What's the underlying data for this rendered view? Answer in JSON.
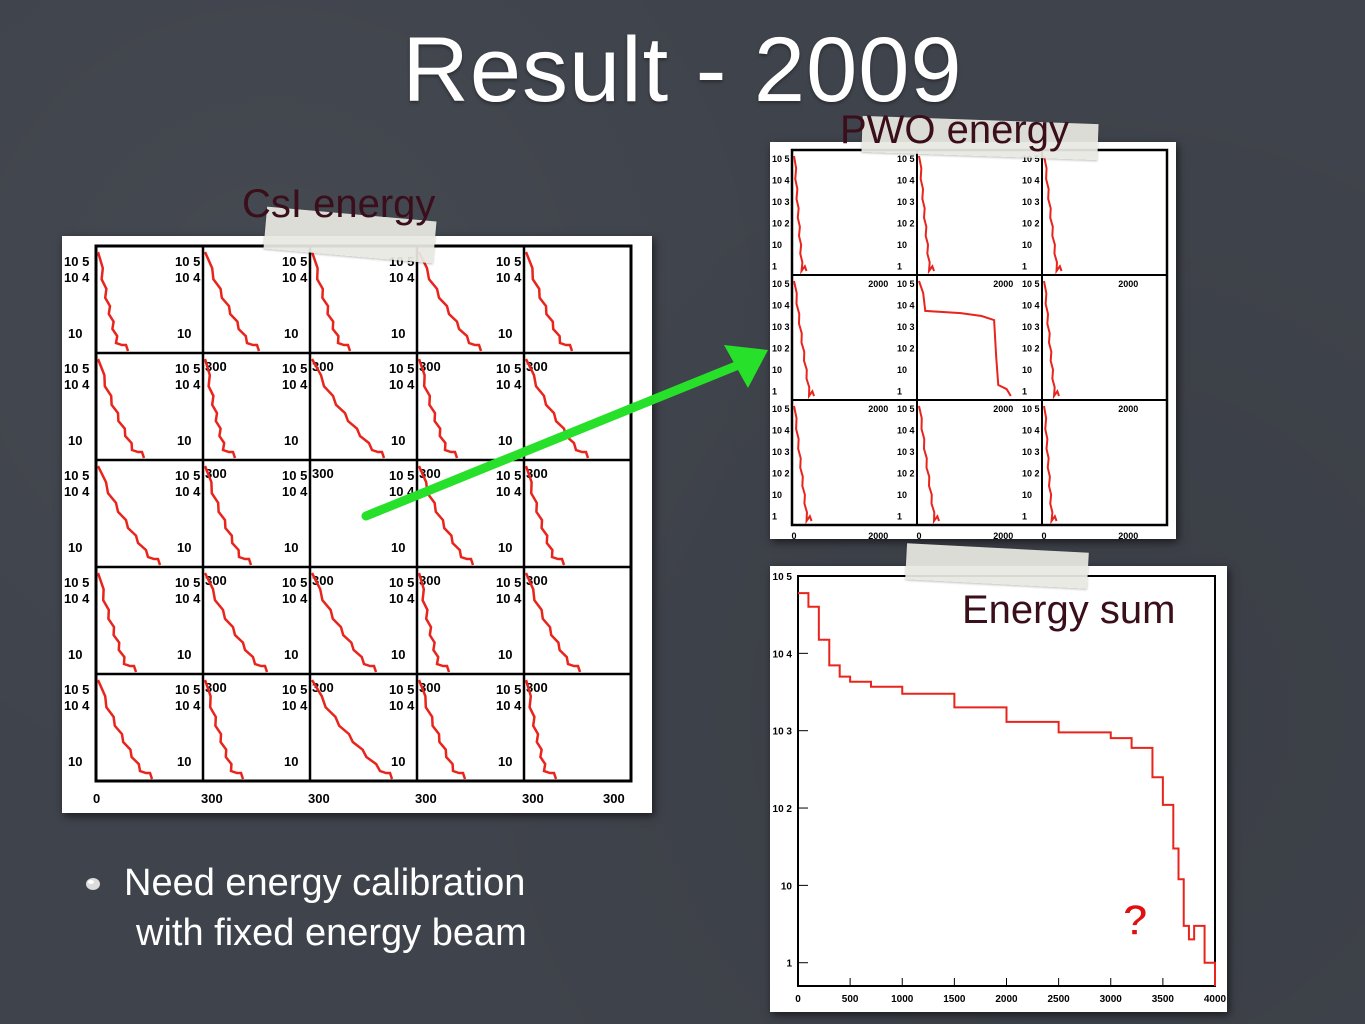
{
  "slide": {
    "title": "Result - 2009",
    "bullet": "Need energy calibration with fixed energy beam",
    "bullet_line1": "Need energy calibration",
    "bullet_line2": "with fixed energy beam",
    "question_mark": "?",
    "colors": {
      "background": "#3f434b",
      "histogram": "#e8241c",
      "arrow": "#27e02a",
      "label": "#3a0e1a"
    }
  },
  "chart_data": [
    {
      "type": "line",
      "title": "CsI energy",
      "grid": "5x5 histograms",
      "scale_y": "log",
      "xlim": [
        0,
        300
      ],
      "ylim": [
        1,
        100000
      ],
      "x_tick_labels": [
        "0",
        "300"
      ],
      "y_tick_labels": [
        "10 5",
        "10 4",
        "10"
      ],
      "series": [
        {
          "shape": "steep falling spectrum",
          "cells": 25
        }
      ]
    },
    {
      "type": "line",
      "title": "PWO energy",
      "grid": "3x3 histograms",
      "scale_y": "log",
      "xlim": [
        0,
        2900
      ],
      "ylim": [
        1,
        100000
      ],
      "x_tick_labels": [
        "0",
        "2000"
      ],
      "y_tick_labels": [
        "10 5",
        "10 4",
        "10 3",
        "10 2",
        "10",
        "1"
      ],
      "center_cell": {
        "x": [
          0,
          100,
          150,
          1000,
          1500,
          1800,
          1850,
          1900,
          2100,
          2200
        ],
        "y": [
          100000,
          30000,
          5000,
          4000,
          3000,
          2000,
          50,
          3,
          2,
          1
        ]
      }
    },
    {
      "type": "line",
      "title": "Energy sum",
      "scale_y": "log",
      "xlim": [
        0,
        4000
      ],
      "ylim": [
        0.5,
        100000
      ],
      "x_ticks": [
        "0",
        "500",
        "1000",
        "1500",
        "2000",
        "2500",
        "3000",
        "3500",
        "4000"
      ],
      "y_ticks": [
        "10 5",
        "10 4",
        "10 3",
        "10 2",
        "10",
        "1"
      ],
      "series": [
        {
          "x": [
            0,
            100,
            200,
            300,
            400,
            500,
            700,
            1000,
            1500,
            2000,
            2500,
            3000,
            3200,
            3400,
            3500,
            3600,
            3650,
            3700,
            3750,
            3800,
            3900,
            4000
          ],
          "y": [
            60000,
            40000,
            15000,
            7000,
            5000,
            4300,
            3700,
            3000,
            2000,
            1300,
            950,
            800,
            600,
            250,
            110,
            30,
            12,
            3,
            2,
            3,
            1,
            0.5
          ]
        }
      ]
    }
  ]
}
